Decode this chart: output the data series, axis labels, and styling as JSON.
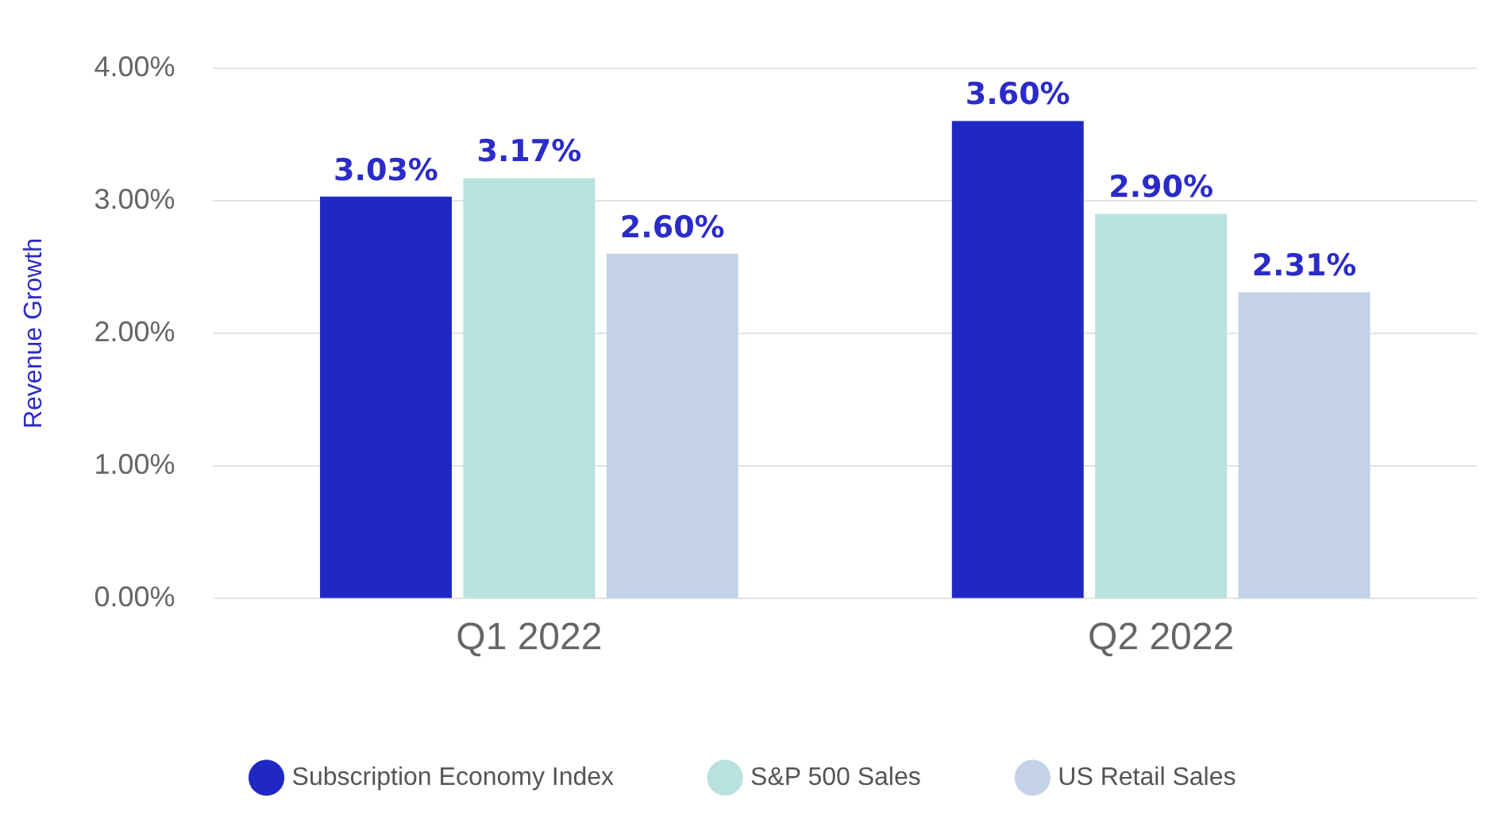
{
  "chart_data": {
    "type": "bar",
    "ylabel": "Revenue Growth",
    "categories": [
      "Q1 2022",
      "Q2 2022"
    ],
    "series": [
      {
        "name": "Subscription Economy Index",
        "color": "#1f28c4",
        "values": [
          3.03,
          3.6
        ],
        "value_labels": [
          "3.03%",
          "3.60%"
        ]
      },
      {
        "name": "S&P 500 Sales",
        "color": "#b9e2de",
        "values": [
          3.17,
          2.9
        ],
        "value_labels": [
          "3.17%",
          "2.90%"
        ]
      },
      {
        "name": "US Retail Sales",
        "color": "#c3d2e8",
        "values": [
          2.6,
          2.31
        ],
        "value_labels": [
          "2.60%",
          "2.31%"
        ]
      }
    ],
    "ylim": [
      0,
      4
    ],
    "yticks": [
      {
        "value": 0,
        "label": "0.00%"
      },
      {
        "value": 1,
        "label": "1.00%"
      },
      {
        "value": 2,
        "label": "2.00%"
      },
      {
        "value": 3,
        "label": "3.00%"
      },
      {
        "value": 4,
        "label": "4.00%"
      }
    ],
    "grid": "y",
    "legend": "bottom"
  }
}
